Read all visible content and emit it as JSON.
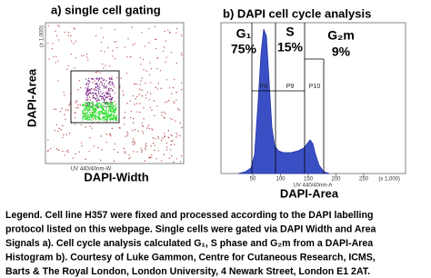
{
  "panel_a": {
    "title": "a) single cell gating",
    "y_label": "DAPI-Area",
    "x_label": "DAPI-Width",
    "x_channel": "UV 440/40nm-W",
    "y_unit": "(x 1,000)"
  },
  "panel_b": {
    "title": "b) DAPI cell cycle analysis",
    "x_label": "DAPI-Area",
    "x_channel": "UV 440/40nm-A",
    "phases": [
      {
        "name": "G₁",
        "percent": "75%"
      },
      {
        "name": "S",
        "percent": "15%"
      },
      {
        "name": "G₂m",
        "percent": "9%"
      }
    ],
    "gates": [
      "P6",
      "P9",
      "P10"
    ],
    "x_ticks": [
      "50",
      "100",
      "150",
      "200",
      "250"
    ],
    "x_unit": "(x 1,000)"
  },
  "caption": [
    "Legend.  Cell line H357 were fixed and processed according to the DAPI labelling",
    "protocol listed on this webpage. Single cells were gated via DAPI Width and Area",
    "Signals a). Cell cycle analysis calculated G₁, S phase and G₂m from a DAPI-Area",
    "Histogram b).  Courtesy of Luke Gammon, Centre for Cutaneous Research, ICMS,",
    "Barts & The Royal London, London University, 4 Newark Street, London E1 2AT."
  ]
}
